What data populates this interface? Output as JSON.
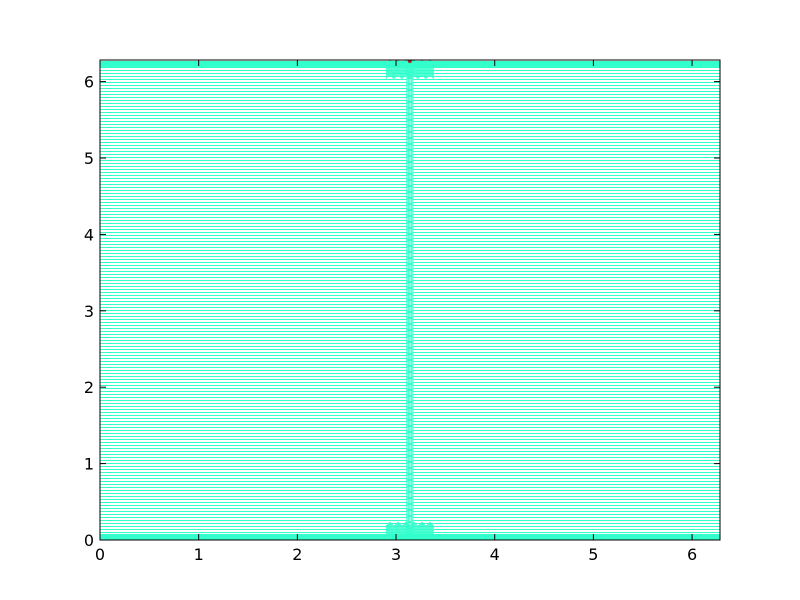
{
  "chart_data": {
    "type": "line",
    "title": "",
    "xlabel": "",
    "ylabel": "",
    "xlim": [
      0,
      6.283
    ],
    "ylim": [
      0,
      6.283
    ],
    "x_ticks": [
      0,
      1,
      2,
      3,
      4,
      5,
      6
    ],
    "x_tick_labels": [
      "0",
      "1",
      "2",
      "3",
      "4",
      "5",
      "6"
    ],
    "y_ticks": [
      0,
      1,
      2,
      3,
      4,
      5,
      6
    ],
    "y_tick_labels": [
      "0",
      "1",
      "2",
      "3",
      "4",
      "5",
      "6"
    ],
    "grid": false,
    "legend": "none",
    "series": [
      {
        "line_count": 160,
        "y_range": [
          0,
          6.283
        ],
        "x_range": [
          0,
          6.283
        ],
        "color": "#33ffcc"
      }
    ],
    "vertical_feature": {
      "x": 3.14,
      "y_range": [
        0,
        6.283
      ],
      "color": "#33ffcc",
      "dense_regions_y": [
        0.1,
        6.15
      ]
    },
    "top_marker": {
      "x": 3.14,
      "y": 6.283,
      "color": "#b22222"
    },
    "edge_bands": [
      {
        "y": 0.04,
        "x_range": [
          0,
          6.283
        ],
        "color": "#33ffcc"
      },
      {
        "y": 6.22,
        "x_range": [
          0,
          6.283
        ],
        "color": "#33ffcc"
      }
    ],
    "colors": {
      "line": "#33ffcc",
      "axes": "#000000",
      "background": "#ffffff"
    }
  }
}
